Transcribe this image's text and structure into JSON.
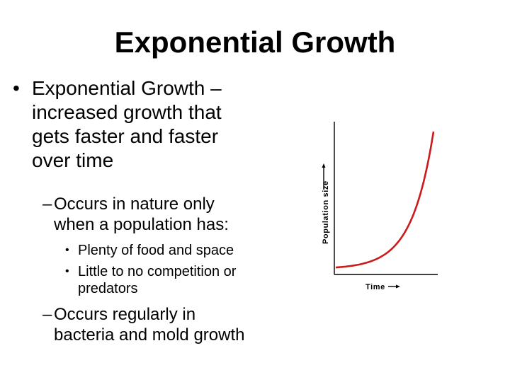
{
  "slide": {
    "title": "Exponential Growth",
    "bullet_1": {
      "marker": "•",
      "lines": [
        "Exponential Growth –",
        "increased growth that",
        "gets faster and faster",
        "over time"
      ]
    },
    "sub_1": {
      "marker": "–",
      "lines": [
        "Occurs in nature only",
        "when a population has:"
      ]
    },
    "sub_sub": [
      {
        "marker": "•",
        "lines": [
          "Plenty of food and space"
        ]
      },
      {
        "marker": "•",
        "lines": [
          "Little to no competition or",
          "predators"
        ]
      }
    ],
    "sub_2": {
      "marker": "–",
      "lines": [
        "Occurs regularly in",
        "bacteria and mold growth"
      ]
    }
  },
  "chart_data": {
    "type": "line",
    "title": "",
    "xlabel": "Time",
    "ylabel": "Population size",
    "x_ticks": [],
    "y_ticks": [],
    "grid": false,
    "series": [
      {
        "color": "#cc1a1a",
        "shape": "exponential",
        "x": [
          0,
          0.2,
          0.4,
          0.6,
          0.7,
          0.8,
          0.9,
          1.0
        ],
        "y": [
          0.02,
          0.03,
          0.05,
          0.1,
          0.15,
          0.26,
          0.48,
          1.0
        ]
      }
    ]
  }
}
